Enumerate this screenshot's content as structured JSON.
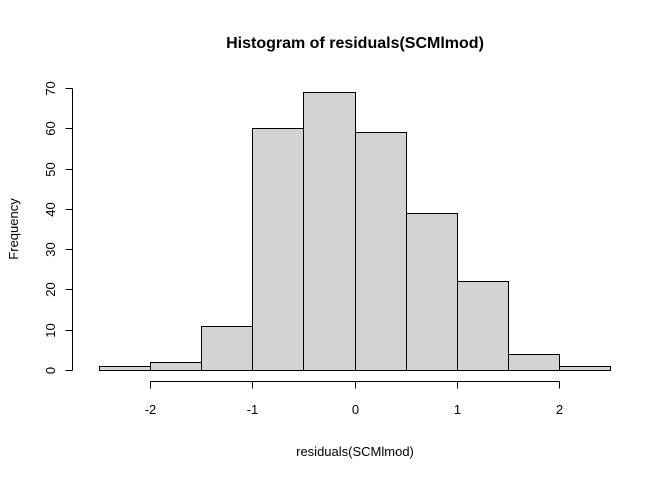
{
  "chart_data": {
    "type": "bar",
    "title": "Histogram of residuals(SCMlmod)",
    "xlabel": "residuals(SCMlmod)",
    "ylabel": "Frequency",
    "bin_edges": [
      -2.5,
      -2.0,
      -1.5,
      -1.0,
      -0.5,
      0.0,
      0.5,
      1.0,
      1.5,
      2.0,
      2.5
    ],
    "values": [
      1,
      2,
      11,
      60,
      69,
      59,
      39,
      22,
      4,
      1
    ],
    "xlim": [
      -2.5,
      2.5
    ],
    "ylim": [
      0,
      70
    ],
    "x_ticks": [
      -2,
      -1,
      0,
      1,
      2
    ],
    "x_tick_labels": [
      "-2",
      "-1",
      "0",
      "1",
      "2"
    ],
    "y_ticks": [
      0,
      10,
      20,
      30,
      40,
      50,
      60,
      70
    ],
    "y_tick_labels": [
      "0",
      "10",
      "20",
      "30",
      "40",
      "50",
      "60",
      "70"
    ],
    "bar_color": "#d3d3d3",
    "border_color": "#000000",
    "grid": false,
    "legend": "none"
  }
}
